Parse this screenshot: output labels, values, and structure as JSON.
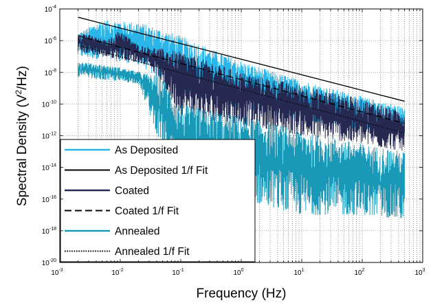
{
  "chart_data": {
    "type": "line",
    "title": "",
    "xlabel": "Frequency (Hz)",
    "ylabel_parts": {
      "prefix": "Spectral Density (V",
      "sup": "2",
      "suffix": "/Hz)"
    },
    "xscale": "log",
    "yscale": "log",
    "xlim": [
      0.001,
      1000
    ],
    "ylim": [
      1e-20,
      0.0001
    ],
    "x_ticks": [
      {
        "base": "10",
        "exp": "-3"
      },
      {
        "base": "10",
        "exp": "-2"
      },
      {
        "base": "10",
        "exp": "-1"
      },
      {
        "base": "10",
        "exp": "0"
      },
      {
        "base": "10",
        "exp": "1"
      },
      {
        "base": "10",
        "exp": "2"
      },
      {
        "base": "10",
        "exp": "3"
      }
    ],
    "y_ticks": [
      {
        "base": "10",
        "exp": "-4"
      },
      {
        "base": "10",
        "exp": "-6"
      },
      {
        "base": "10",
        "exp": "-8"
      },
      {
        "base": "10",
        "exp": "-10"
      },
      {
        "base": "10",
        "exp": "-12"
      },
      {
        "base": "10",
        "exp": "-14"
      },
      {
        "base": "10",
        "exp": "-16"
      },
      {
        "base": "10",
        "exp": "-18"
      },
      {
        "base": "10",
        "exp": "-20"
      }
    ],
    "grid": true,
    "legend_position": "lower-left",
    "frequency_range": [
      0.002,
      500
    ],
    "series": [
      {
        "name": "As Deposited",
        "style": "solid",
        "color": "#2ab6e8",
        "kind": "noise",
        "upper_envelope": [
          [
            0.002,
            3e-06
          ],
          [
            0.005,
            2e-05
          ],
          [
            0.02,
            1.5e-05
          ],
          [
            0.1,
            2e-06
          ],
          [
            1,
            5e-08
          ],
          [
            10,
            3e-09
          ],
          [
            100,
            3e-10
          ],
          [
            500,
            6e-11
          ]
        ],
        "lower_envelope": [
          [
            0.002,
            1e-07
          ],
          [
            0.02,
            3e-08
          ],
          [
            0.1,
            5e-10
          ],
          [
            1,
            5e-11
          ],
          [
            10,
            1e-11
          ],
          [
            100,
            2e-12
          ],
          [
            500,
            1e-12
          ]
        ]
      },
      {
        "name": "As Deposited 1/f Fit",
        "style": "solid",
        "color": "#000000",
        "kind": "fit",
        "points": [
          [
            0.002,
            3e-05
          ],
          [
            500,
            1.5e-10
          ]
        ]
      },
      {
        "name": "Coated",
        "style": "solid",
        "color": "#262a52",
        "kind": "noise",
        "upper_envelope": [
          [
            0.002,
            4e-06
          ],
          [
            0.006,
            1e-06
          ],
          [
            0.01,
            5e-06
          ],
          [
            0.02,
            5e-07
          ],
          [
            0.1,
            2e-07
          ],
          [
            1,
            1e-08
          ],
          [
            10,
            1.5e-09
          ],
          [
            100,
            2e-10
          ],
          [
            500,
            3e-11
          ]
        ],
        "lower_envelope": [
          [
            0.002,
            2e-07
          ],
          [
            0.03,
            3e-08
          ],
          [
            0.1,
            2e-11
          ],
          [
            1,
            5e-12
          ],
          [
            10,
            1e-12
          ],
          [
            100,
            3e-13
          ],
          [
            500,
            1e-13
          ]
        ]
      },
      {
        "name": "Coated 1/f Fit",
        "style": "dashed",
        "color": "#000000",
        "kind": "fit",
        "points": [
          [
            0.002,
            2e-06
          ],
          [
            500,
            6e-12
          ]
        ]
      },
      {
        "name": "Annealed",
        "style": "solid",
        "color": "#1a98b8",
        "kind": "noise",
        "upper_envelope": [
          [
            0.002,
            5e-08
          ],
          [
            0.01,
            2e-08
          ],
          [
            0.05,
            5e-09
          ],
          [
            0.1,
            1e-10
          ],
          [
            1,
            2e-11
          ],
          [
            10,
            2e-12
          ],
          [
            100,
            3e-13
          ],
          [
            500,
            1e-13
          ]
        ],
        "lower_envelope": [
          [
            0.002,
            5e-09
          ],
          [
            0.02,
            2e-09
          ],
          [
            0.1,
            1e-16
          ],
          [
            1,
            1e-16
          ],
          [
            10,
            1e-17
          ],
          [
            100,
            1e-17
          ],
          [
            500,
            5e-18
          ]
        ]
      },
      {
        "name": "Annealed 1/f Fit",
        "style": "dotted",
        "color": "#000000",
        "kind": "fit",
        "points": [
          [
            0.002,
            5e-07
          ],
          [
            500,
            1.5e-12
          ]
        ]
      }
    ]
  }
}
